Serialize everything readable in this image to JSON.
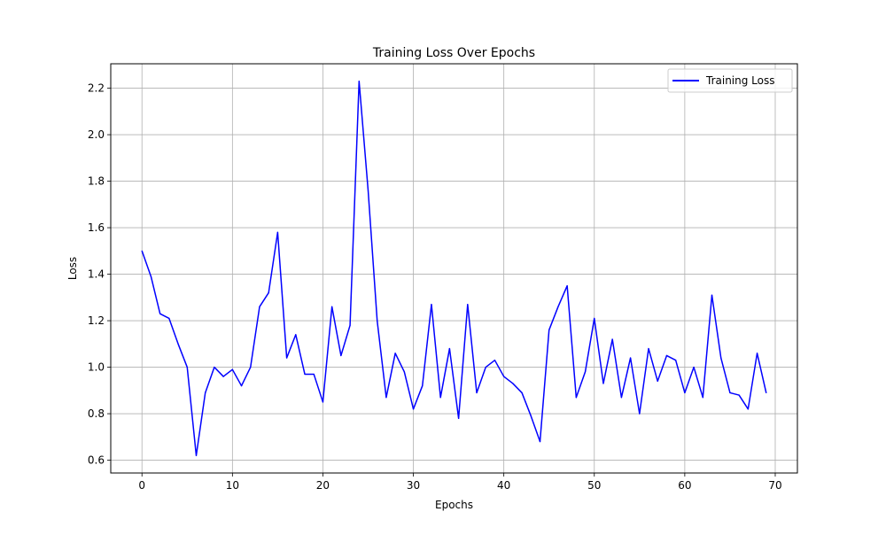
{
  "chart_data": {
    "type": "line",
    "title": "Training Loss Over Epochs",
    "xlabel": "Epochs",
    "ylabel": "Loss",
    "xlim": [
      -3.45,
      72.45
    ],
    "ylim": [
      0.545,
      2.305
    ],
    "xticks": [
      0,
      10,
      20,
      30,
      40,
      50,
      60,
      70
    ],
    "yticks": [
      0.6,
      0.8,
      1.0,
      1.2,
      1.4,
      1.6,
      1.8,
      2.0,
      2.2
    ],
    "grid": true,
    "legend_position": "top-right",
    "series": [
      {
        "name": "Training Loss",
        "color": "#0000ff",
        "x": [
          0,
          1,
          2,
          3,
          4,
          5,
          6,
          7,
          8,
          9,
          10,
          11,
          12,
          13,
          14,
          15,
          16,
          17,
          18,
          19,
          20,
          21,
          22,
          23,
          24,
          25,
          26,
          27,
          28,
          29,
          30,
          31,
          32,
          33,
          34,
          35,
          36,
          37,
          38,
          39,
          40,
          41,
          42,
          43,
          44,
          45,
          46,
          47,
          48,
          49,
          50,
          51,
          52,
          53,
          54,
          55,
          56,
          57,
          58,
          59,
          60,
          61,
          62,
          63,
          64,
          65,
          66,
          67,
          68,
          69
        ],
        "values": [
          1.5,
          1.39,
          1.23,
          1.21,
          1.1,
          1.0,
          0.62,
          0.89,
          1.0,
          0.96,
          0.99,
          0.92,
          1.0,
          1.26,
          1.32,
          1.58,
          1.04,
          1.14,
          0.97,
          0.97,
          0.85,
          1.26,
          1.05,
          1.18,
          2.23,
          1.76,
          1.2,
          0.87,
          1.06,
          0.98,
          0.82,
          0.92,
          1.27,
          0.87,
          1.08,
          0.78,
          1.27,
          0.89,
          1.0,
          1.03,
          0.96,
          0.93,
          0.89,
          0.79,
          0.68,
          1.16,
          1.26,
          1.35,
          0.87,
          0.98,
          1.21,
          0.93,
          1.12,
          0.87,
          1.04,
          0.8,
          1.08,
          0.94,
          1.05,
          1.03,
          0.89,
          1.0,
          0.87,
          1.31,
          1.04,
          0.89,
          0.88,
          0.82,
          1.06,
          0.89
        ]
      }
    ]
  }
}
